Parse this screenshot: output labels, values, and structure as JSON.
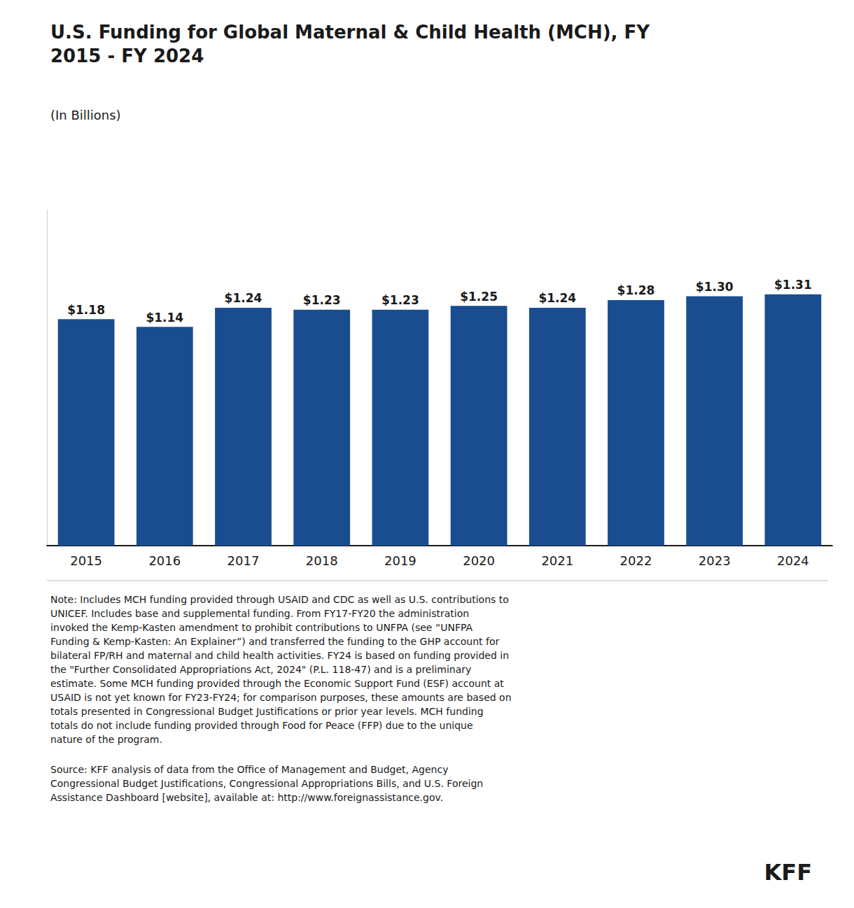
{
  "chart_data": {
    "type": "bar",
    "title": "U.S. Funding for Global Maternal & Child Health (MCH), FY\n2015 - FY 2024",
    "subtitle": "(In Billions)",
    "categories": [
      "2015",
      "2016",
      "2017",
      "2018",
      "2019",
      "2020",
      "2021",
      "2022",
      "2023",
      "2024"
    ],
    "values": [
      1.18,
      1.14,
      1.24,
      1.23,
      1.23,
      1.25,
      1.24,
      1.28,
      1.3,
      1.31
    ],
    "value_labels": [
      "$1.18",
      "$1.14",
      "$1.24",
      "$1.23",
      "$1.23",
      "$1.25",
      "$1.24",
      "$1.28",
      "$1.30",
      "$1.31"
    ],
    "color": "#1a4d8f",
    "ylim": [
      0,
      1.75
    ],
    "grid": false,
    "data_labels": true,
    "tick_labels": "x",
    "annotations": [
      "Note: Includes MCH funding provided through USAID and CDC as well as U.S. contributions to\nUNICEF. Includes base and supplemental funding. From FY17-FY20 the administration\ninvoked the Kemp-Kasten amendment to prohibit contributions to UNFPA (see “UNFPA\nFunding & Kemp-Kasten: An Explainer”) and transferred the funding to the GHP account for\nbilateral FP/RH and maternal and child health activities. FY24 is based on funding provided in\nthe \"Further Consolidated Appropriations Act, 2024\" (P.L. 118-47) and is a preliminary\nestimate. Some MCH funding provided through the Economic Support Fund (ESF) account at\nUSAID is not yet known for FY23-FY24; for comparison purposes, these amounts are based on\ntotals presented in Congressional Budget Justifications or prior year levels. MCH funding\ntotals do not include funding provided through Food for Peace (FFP) due to the unique\nnature of the program.",
      "Source: KFF analysis of data from the Office of Management and Budget, Agency\nCongressional Budget Justifications, Congressional Appropriations Bills, and U.S. Foreign\nAssistance Dashboard [website], available at: http://www.foreignassistance.gov.",
      "KFF"
    ]
  }
}
